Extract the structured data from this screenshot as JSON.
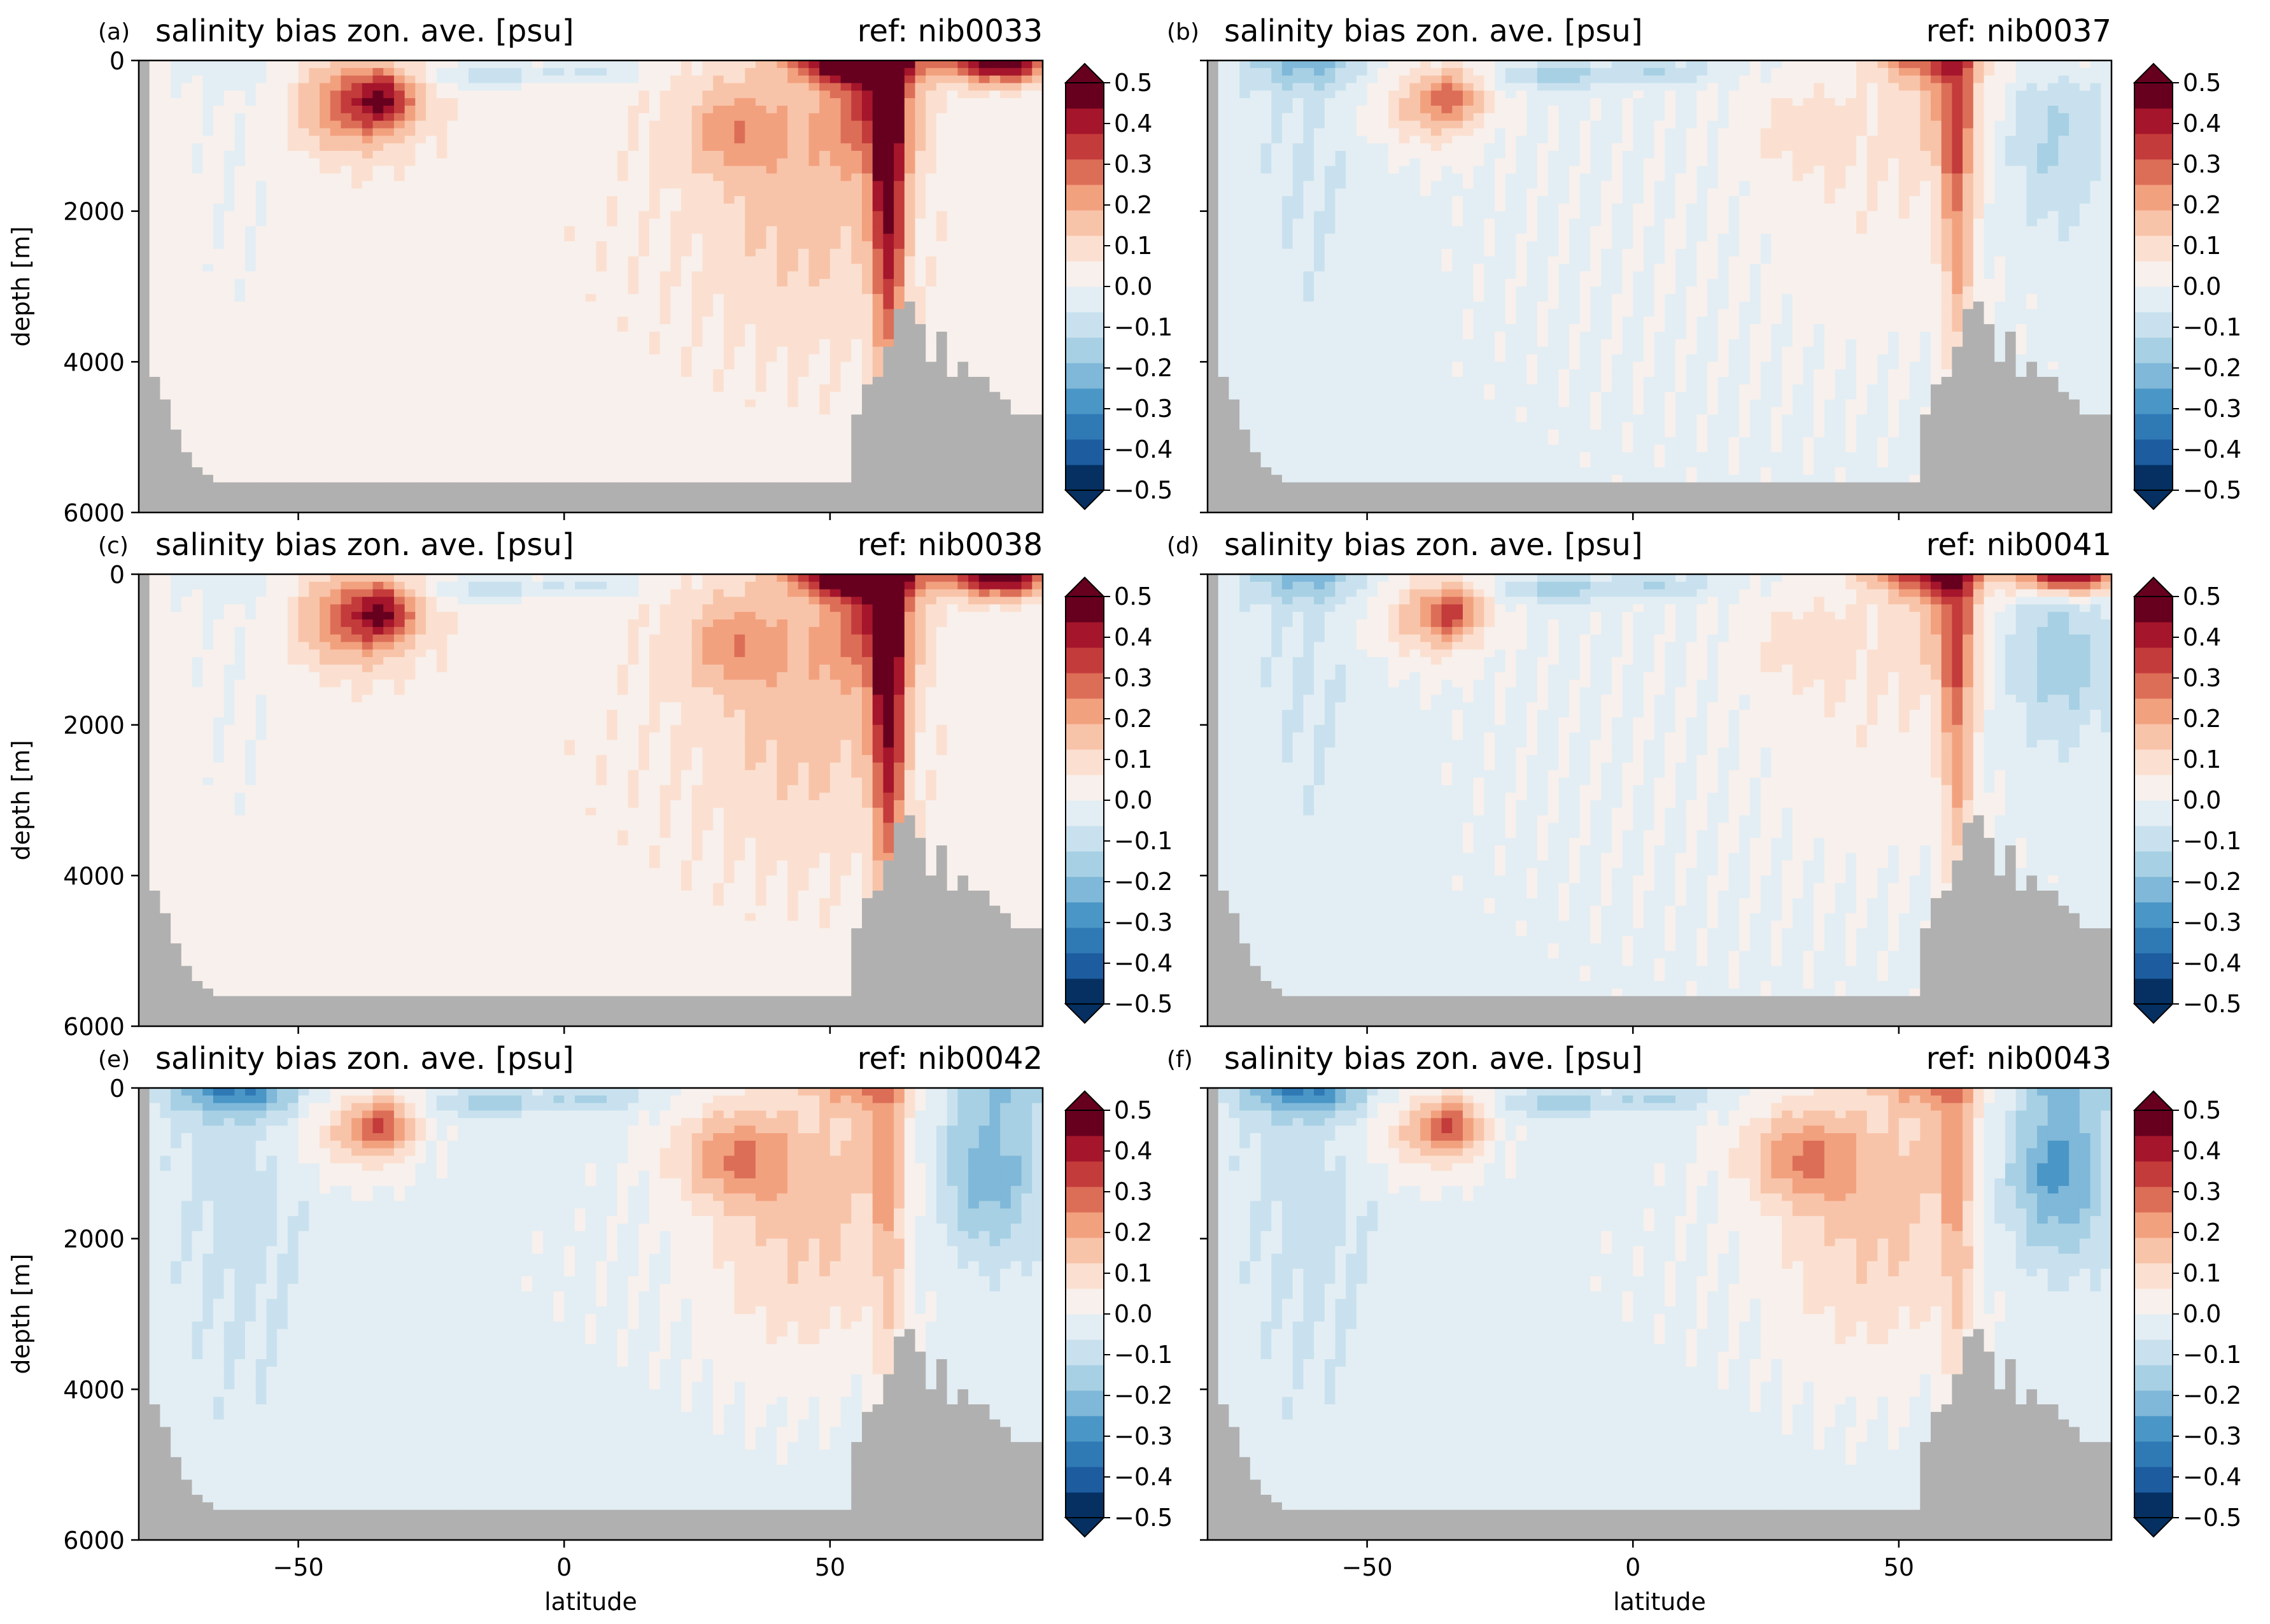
{
  "figure": {
    "title_left": "salinity bias zon. ave. [psu]",
    "xlabel": "latitude",
    "ylabel": "depth [m]",
    "land_color": "#b0b0b0"
  },
  "chart_data": [
    {
      "panel": "(a)",
      "type": "heatmap",
      "title": "salinity bias zon. ave. [psu]",
      "ref": "ref: nib0033",
      "xlabel": "",
      "ylabel": "depth [m]",
      "xlim": [
        -80,
        90
      ],
      "ylim": [
        6000,
        0
      ],
      "xticks": [
        -50,
        0,
        50
      ],
      "yticks": [
        0,
        2000,
        4000,
        6000
      ],
      "colorbar": {
        "vmin": -0.5,
        "vmax": 0.5,
        "ticks": [
          0.5,
          0.4,
          0.3,
          0.2,
          0.1,
          0.0,
          -0.1,
          -0.2,
          -0.3,
          -0.4,
          -0.5
        ],
        "extend": "both",
        "cmap": "RdBu_r"
      },
      "features": {
        "npac_surface": 0.5,
        "narctic_surface": 0.5,
        "nhigh_deep": 0.4,
        "nmid_plume": 0.15,
        "smid_intermediate": 0.25,
        "stropical_core": 0.25,
        "equatorial_thermocline": -0.15,
        "arctic_intermediate": 0.0,
        "southern_ocean": -0.03,
        "abyss": 0.03,
        "surface_sh": -0.05
      }
    },
    {
      "panel": "(b)",
      "type": "heatmap",
      "title": "salinity bias zon. ave. [psu]",
      "ref": "ref: nib0037",
      "xlabel": "",
      "ylabel": "",
      "xlim": [
        -80,
        90
      ],
      "ylim": [
        6000,
        0
      ],
      "xticks": [
        -50,
        0,
        50
      ],
      "yticks": [
        0,
        2000,
        4000,
        6000
      ],
      "colorbar": {
        "vmin": -0.5,
        "vmax": 0.5,
        "ticks": [
          0.5,
          0.4,
          0.3,
          0.2,
          0.1,
          0.0,
          -0.1,
          -0.2,
          -0.3,
          -0.4,
          -0.5
        ],
        "extend": "both",
        "cmap": "RdBu_r"
      },
      "features": {
        "npac_surface": 0.2,
        "narctic_surface": 0.05,
        "nhigh_deep": 0.25,
        "nmid_plume": 0.08,
        "smid_intermediate": 0.15,
        "stropical_core": 0.2,
        "equatorial_thermocline": -0.15,
        "arctic_intermediate": -0.12,
        "southern_ocean": -0.05,
        "abyss": -0.02,
        "surface_sh": -0.15
      }
    },
    {
      "panel": "(c)",
      "type": "heatmap",
      "title": "salinity bias zon. ave. [psu]",
      "ref": "ref: nib0038",
      "xlabel": "",
      "ylabel": "depth [m]",
      "xlim": [
        -80,
        90
      ],
      "ylim": [
        6000,
        0
      ],
      "xticks": [
        -50,
        0,
        50
      ],
      "yticks": [
        0,
        2000,
        4000,
        6000
      ],
      "colorbar": {
        "vmin": -0.5,
        "vmax": 0.5,
        "ticks": [
          0.5,
          0.4,
          0.3,
          0.2,
          0.1,
          0.0,
          -0.1,
          -0.2,
          -0.3,
          -0.4,
          -0.5
        ],
        "extend": "both",
        "cmap": "RdBu_r"
      },
      "features": {
        "npac_surface": 0.5,
        "narctic_surface": 0.5,
        "nhigh_deep": 0.4,
        "nmid_plume": 0.15,
        "smid_intermediate": 0.25,
        "stropical_core": 0.25,
        "equatorial_thermocline": -0.15,
        "arctic_intermediate": 0.0,
        "southern_ocean": -0.03,
        "abyss": 0.03,
        "surface_sh": -0.05
      }
    },
    {
      "panel": "(d)",
      "type": "heatmap",
      "title": "salinity bias zon. ave. [psu]",
      "ref": "ref: nib0041",
      "xlabel": "",
      "ylabel": "",
      "xlim": [
        -80,
        90
      ],
      "ylim": [
        6000,
        0
      ],
      "xticks": [
        -50,
        0,
        50
      ],
      "yticks": [
        0,
        2000,
        4000,
        6000
      ],
      "colorbar": {
        "vmin": -0.5,
        "vmax": 0.5,
        "ticks": [
          0.5,
          0.4,
          0.3,
          0.2,
          0.1,
          0.0,
          -0.1,
          -0.2,
          -0.3,
          -0.4,
          -0.5
        ],
        "extend": "both",
        "cmap": "RdBu_r"
      },
      "features": {
        "npac_surface": 0.3,
        "narctic_surface": 0.5,
        "nhigh_deep": 0.25,
        "nmid_plume": 0.08,
        "smid_intermediate": 0.15,
        "stropical_core": 0.25,
        "equatorial_thermocline": -0.15,
        "arctic_intermediate": -0.15,
        "southern_ocean": -0.05,
        "abyss": -0.02,
        "surface_sh": -0.15
      }
    },
    {
      "panel": "(e)",
      "type": "heatmap",
      "title": "salinity bias zon. ave. [psu]",
      "ref": "ref: nib0042",
      "xlabel": "latitude",
      "ylabel": "depth [m]",
      "xlim": [
        -80,
        90
      ],
      "ylim": [
        6000,
        0
      ],
      "xticks": [
        -50,
        0,
        50
      ],
      "yticks": [
        0,
        2000,
        4000,
        6000
      ],
      "colorbar": {
        "vmin": -0.5,
        "vmax": 0.5,
        "ticks": [
          0.5,
          0.4,
          0.3,
          0.2,
          0.1,
          0.0,
          -0.1,
          -0.2,
          -0.3,
          -0.4,
          -0.5
        ],
        "extend": "both",
        "cmap": "RdBu_r"
      },
      "features": {
        "npac_surface": 0.15,
        "narctic_surface": -0.1,
        "nhigh_deep": 0.15,
        "nmid_plume": 0.22,
        "smid_intermediate": 0.15,
        "stropical_core": 0.25,
        "equatorial_thermocline": -0.15,
        "arctic_intermediate": -0.2,
        "southern_ocean": -0.06,
        "abyss": -0.03,
        "surface_sh": -0.25
      }
    },
    {
      "panel": "(f)",
      "type": "heatmap",
      "title": "salinity bias zon. ave. [psu]",
      "ref": "ref: nib0043",
      "xlabel": "latitude",
      "ylabel": "",
      "xlim": [
        -80,
        90
      ],
      "ylim": [
        6000,
        0
      ],
      "xticks": [
        -50,
        0,
        50
      ],
      "yticks": [
        0,
        2000,
        4000,
        6000
      ],
      "colorbar": {
        "vmin": -0.5,
        "vmax": 0.5,
        "ticks": [
          0.5,
          0.4,
          0.3,
          0.2,
          0.1,
          0.0,
          -0.1,
          -0.2,
          -0.3,
          -0.4,
          -0.5
        ],
        "extend": "both",
        "cmap": "RdBu_r"
      },
      "features": {
        "npac_surface": 0.15,
        "narctic_surface": -0.1,
        "nhigh_deep": 0.15,
        "nmid_plume": 0.22,
        "smid_intermediate": 0.15,
        "stropical_core": 0.25,
        "equatorial_thermocline": -0.15,
        "arctic_intermediate": -0.25,
        "southern_ocean": -0.06,
        "abyss": -0.03,
        "surface_sh": -0.25
      }
    }
  ],
  "colormap": [
    "#053061",
    "#1c5c9f",
    "#2f79b5",
    "#4a96c6",
    "#7fb8d9",
    "#a7d0e4",
    "#c9e1ee",
    "#e3eef4",
    "#f8f0ec",
    "#fbe0d1",
    "#f8c4a9",
    "#f2a17f",
    "#dc6e57",
    "#c43b3b",
    "#a5152b",
    "#67001f"
  ]
}
